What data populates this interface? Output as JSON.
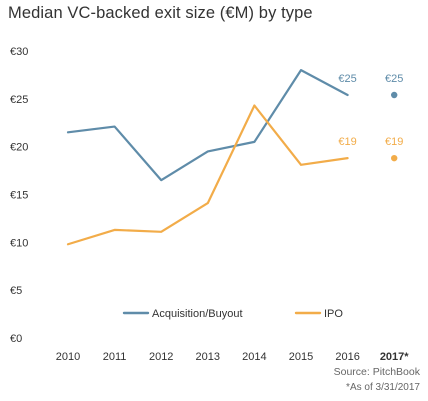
{
  "source": "Source: PitchBook",
  "note": "*As of 3/31/2017",
  "chart_data": {
    "type": "line",
    "title": "Median VC-backed exit size (€M) by type",
    "xlabel": "",
    "ylabel": "",
    "categories": [
      "2010",
      "2011",
      "2012",
      "2013",
      "2014",
      "2015",
      "2016",
      "2017*"
    ],
    "yticks": [
      "€0",
      "€5",
      "€10",
      "€15",
      "€20",
      "€25",
      "€30"
    ],
    "ylim": [
      0,
      30
    ],
    "grid": false,
    "legend_position": "bottom-center",
    "series": [
      {
        "name": "Acquisition/Buyout",
        "color": "#5f8ca9",
        "values": [
          21.5,
          22.1,
          16.5,
          19.5,
          20.5,
          28.0,
          25.4,
          25.4
        ],
        "data_labels": [
          null,
          null,
          null,
          null,
          null,
          null,
          "€25",
          "€25"
        ]
      },
      {
        "name": "IPO",
        "color": "#f2ac49",
        "values": [
          9.8,
          11.3,
          11.1,
          14.1,
          24.3,
          18.1,
          18.8,
          18.8
        ],
        "data_labels": [
          null,
          null,
          null,
          null,
          null,
          null,
          "€19",
          "€19"
        ]
      }
    ]
  }
}
